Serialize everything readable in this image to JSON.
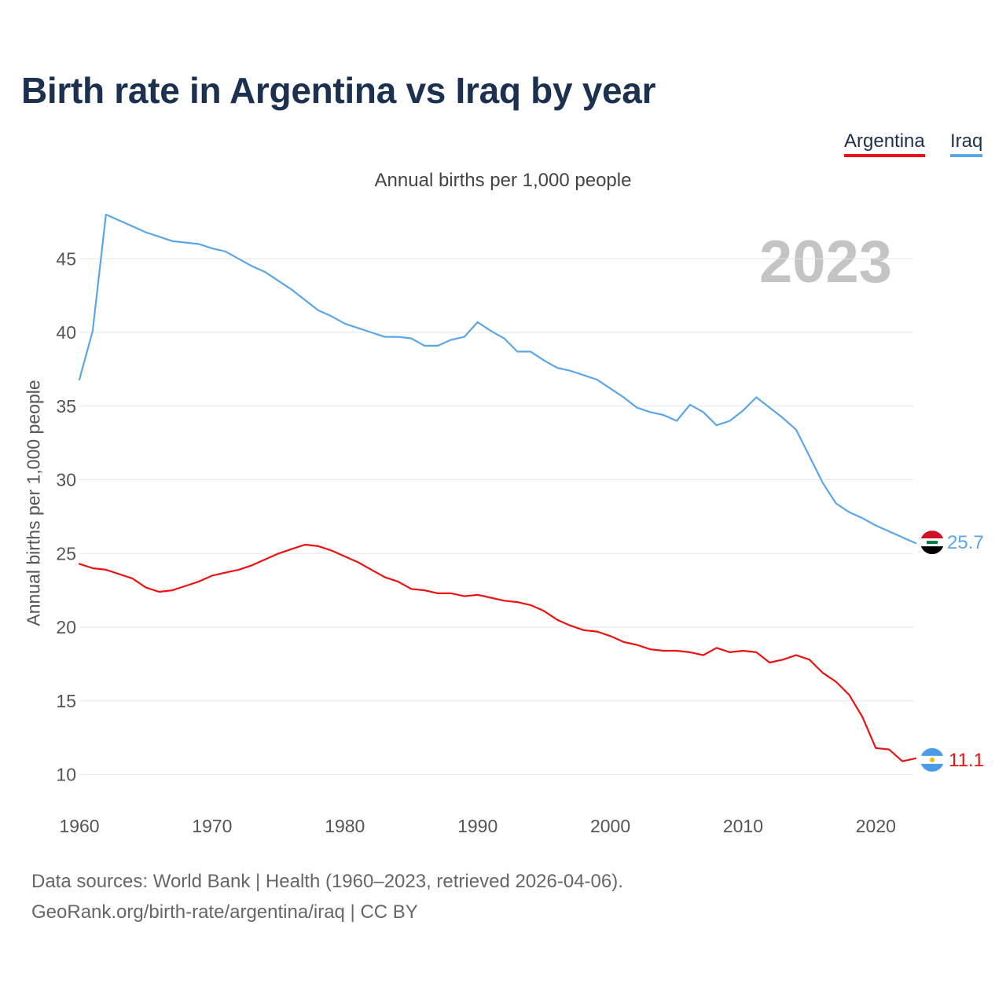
{
  "header": {
    "title": "Birth rate in Argentina vs Iraq by year",
    "subtitle": "Annual births per 1,000 people",
    "year": "2023"
  },
  "legend": {
    "argentina": "Argentina",
    "iraq": "Iraq"
  },
  "footer": {
    "source": "Data sources: World Bank | Health (1960–2023, retrieved 2026-04-06).",
    "credit": "GeoRank.org/birth-rate/argentina/iraq | CC BY"
  },
  "colors": {
    "argentina": "#ee1111",
    "iraq": "#5aa6e6",
    "grid": "#e6e6e6"
  },
  "chart_data": {
    "type": "line",
    "title": "Birth rate in Argentina vs Iraq by year",
    "xlabel": "",
    "ylabel": "Annual births per 1,000 people",
    "xlim": [
      1960,
      2023
    ],
    "ylim": [
      8,
      48
    ],
    "xticks": [
      1960,
      1970,
      1980,
      1990,
      2000,
      2010,
      2020
    ],
    "yticks": [
      10,
      15,
      20,
      25,
      30,
      35,
      40,
      45
    ],
    "grid": true,
    "legend_position": "top-right",
    "x": [
      1960,
      1961,
      1962,
      1963,
      1964,
      1965,
      1966,
      1967,
      1968,
      1969,
      1970,
      1971,
      1972,
      1973,
      1974,
      1975,
      1976,
      1977,
      1978,
      1979,
      1980,
      1981,
      1982,
      1983,
      1984,
      1985,
      1986,
      1987,
      1988,
      1989,
      1990,
      1991,
      1992,
      1993,
      1994,
      1995,
      1996,
      1997,
      1998,
      1999,
      2000,
      2001,
      2002,
      2003,
      2004,
      2005,
      2006,
      2007,
      2008,
      2009,
      2010,
      2011,
      2012,
      2013,
      2014,
      2015,
      2016,
      2017,
      2018,
      2019,
      2020,
      2021,
      2022,
      2023
    ],
    "series": [
      {
        "name": "Argentina",
        "color": "#ee1111",
        "end_label": "11.1",
        "values": [
          24.3,
          24.0,
          23.9,
          23.6,
          23.3,
          22.7,
          22.4,
          22.5,
          22.8,
          23.1,
          23.5,
          23.7,
          23.9,
          24.2,
          24.6,
          25.0,
          25.3,
          25.6,
          25.5,
          25.2,
          24.8,
          24.4,
          23.9,
          23.4,
          23.1,
          22.6,
          22.5,
          22.3,
          22.3,
          22.1,
          22.2,
          22.0,
          21.8,
          21.7,
          21.5,
          21.1,
          20.5,
          20.1,
          19.8,
          19.7,
          19.4,
          19.0,
          18.8,
          18.5,
          18.4,
          18.4,
          18.3,
          18.1,
          18.6,
          18.3,
          18.4,
          18.3,
          17.6,
          17.8,
          18.1,
          17.8,
          16.9,
          16.3,
          15.4,
          13.9,
          11.8,
          11.7,
          10.9,
          11.1
        ]
      },
      {
        "name": "Iraq",
        "color": "#5aa6e6",
        "end_label": "25.7",
        "values": [
          36.8,
          40.1,
          48.0,
          47.6,
          47.2,
          46.8,
          46.5,
          46.2,
          46.1,
          46.0,
          45.7,
          45.5,
          45.0,
          44.5,
          44.1,
          43.5,
          42.9,
          42.2,
          41.5,
          41.1,
          40.6,
          40.3,
          40.0,
          39.7,
          39.7,
          39.6,
          39.1,
          39.1,
          39.5,
          39.7,
          40.7,
          40.1,
          39.6,
          38.7,
          38.7,
          38.1,
          37.6,
          37.4,
          37.1,
          36.8,
          36.2,
          35.6,
          34.9,
          34.6,
          34.4,
          34.0,
          35.1,
          34.6,
          33.7,
          34.0,
          34.7,
          35.6,
          34.9,
          34.2,
          33.4,
          31.6,
          29.8,
          28.4,
          27.8,
          27.4,
          26.9,
          26.5,
          26.1,
          25.7
        ]
      }
    ]
  }
}
